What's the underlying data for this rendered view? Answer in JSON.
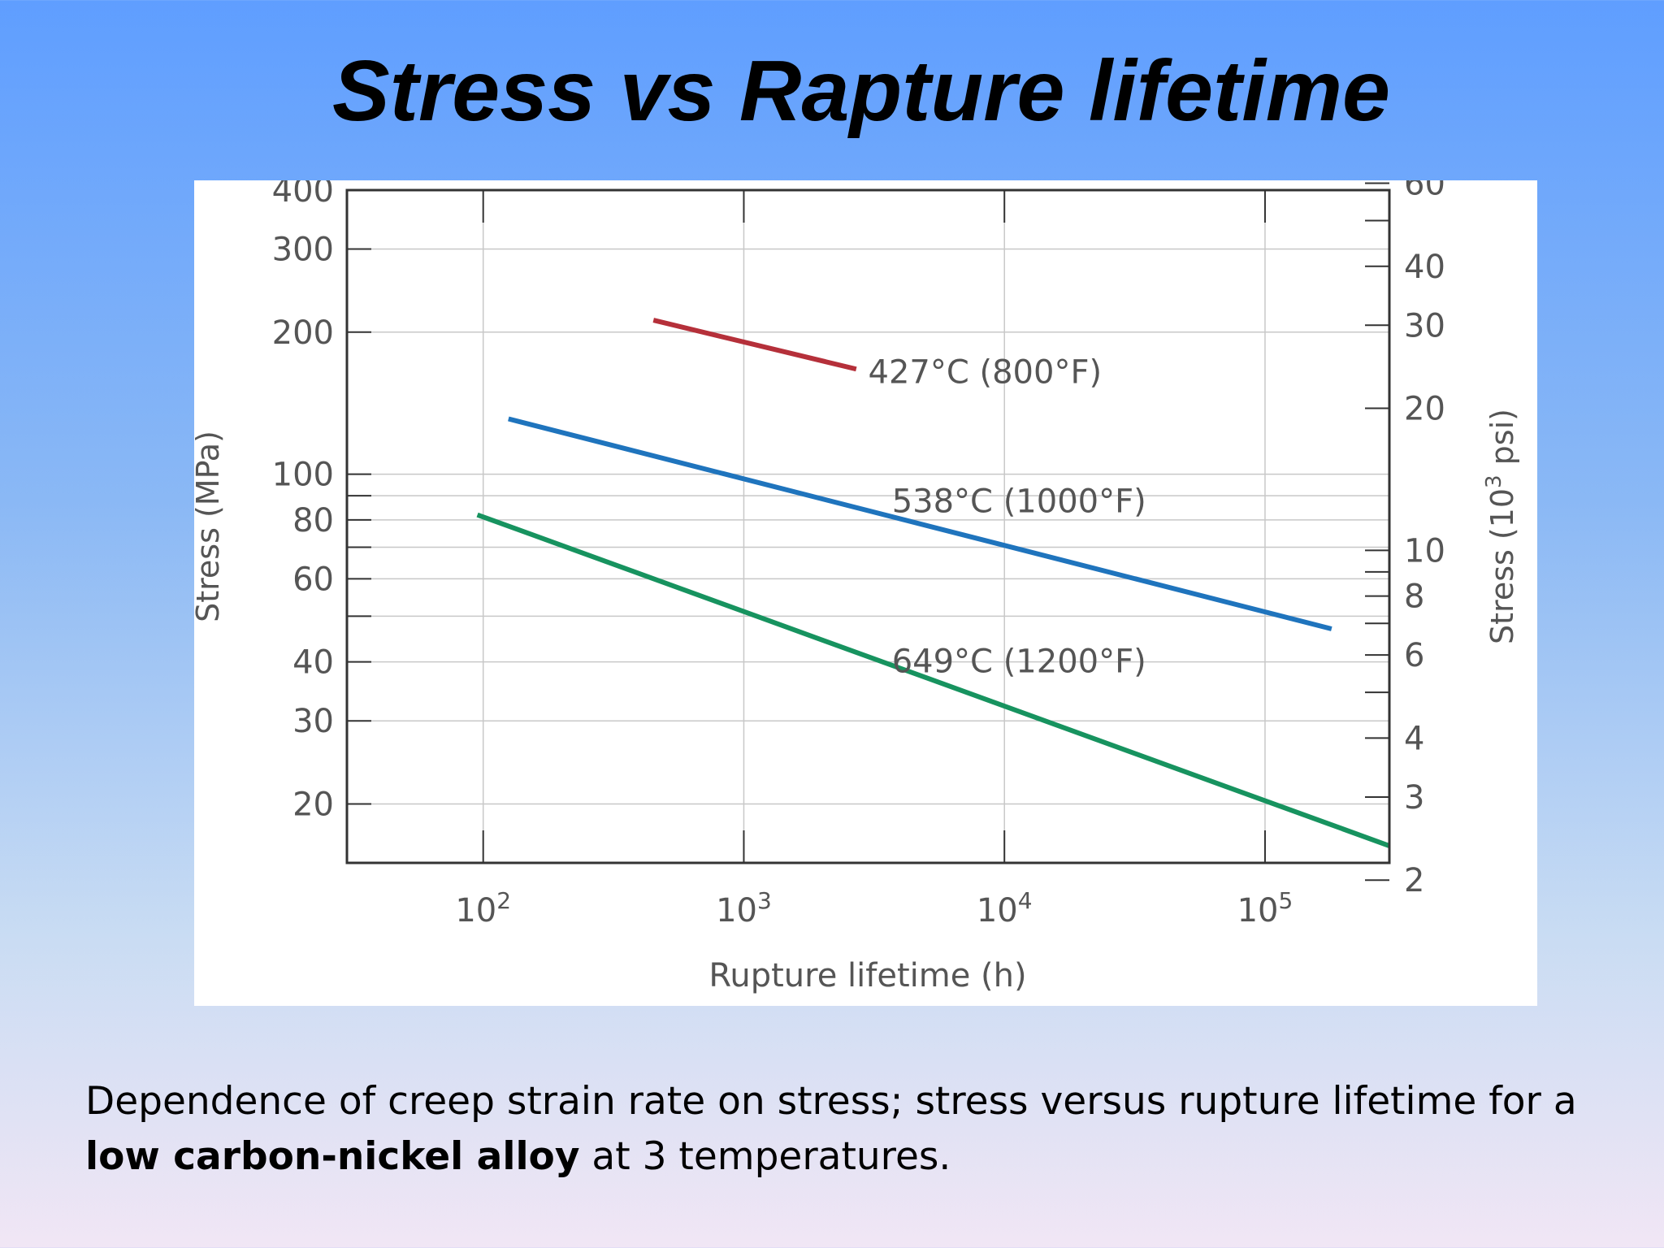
{
  "slide": {
    "title": "Stress vs Rapture lifetime",
    "caption_part1": "Dependence of creep strain rate on stress; stress versus rupture lifetime for a ",
    "caption_bold": "low carbon-nickel alloy",
    "caption_part2": " at 3 temperatures."
  },
  "chart_data": {
    "type": "line",
    "title": "",
    "xlabel": "Rupture lifetime (h)",
    "ylabel": "Stress (MPa)",
    "ylabel_right_prefix": "Stress (10",
    "ylabel_right_sup": "3",
    "ylabel_right_suffix": " psi)",
    "x_scale": "log",
    "y_scale": "log",
    "xlim": [
      30,
      300000
    ],
    "ylim": [
      15,
      400
    ],
    "x_ticks": [
      {
        "value": 100,
        "base": "10",
        "exp": "2"
      },
      {
        "value": 1000,
        "base": "10",
        "exp": "3"
      },
      {
        "value": 10000,
        "base": "10",
        "exp": "4"
      },
      {
        "value": 100000,
        "base": "10",
        "exp": "5"
      }
    ],
    "y_ticks_left": [
      400,
      300,
      200,
      100,
      80,
      60,
      40,
      30,
      20
    ],
    "y_grid_left": [
      400,
      300,
      200,
      100,
      90,
      80,
      70,
      60,
      50,
      40,
      30,
      20
    ],
    "y_ticks_right_ksi": [
      60,
      40,
      30,
      20,
      10,
      8,
      6,
      4,
      3,
      2
    ],
    "right_minor_ksi": [
      50,
      9,
      7,
      5
    ],
    "mpa_per_ksi": 6.895,
    "grid": true,
    "series": [
      {
        "name": "427°C (800°F)",
        "color": "#b5303a",
        "x": [
          450,
          2700
        ],
        "y": [
          212,
          167
        ]
      },
      {
        "name": "538°C (1000°F)",
        "color": "#1f74bd",
        "x": [
          125,
          180000
        ],
        "y": [
          131,
          47
        ]
      },
      {
        "name": "649°C (1200°F)",
        "color": "#17935f",
        "x": [
          95,
          300000
        ],
        "y": [
          82,
          16.3
        ]
      }
    ],
    "annotations": [
      {
        "text": "427°C (800°F)",
        "x": 3000,
        "y": 156
      },
      {
        "text": "538°C (1000°F)",
        "x": 3700,
        "y": 83
      },
      {
        "text": "649°C (1200°F)",
        "x": 3700,
        "y": 38
      }
    ],
    "legend": "none"
  }
}
